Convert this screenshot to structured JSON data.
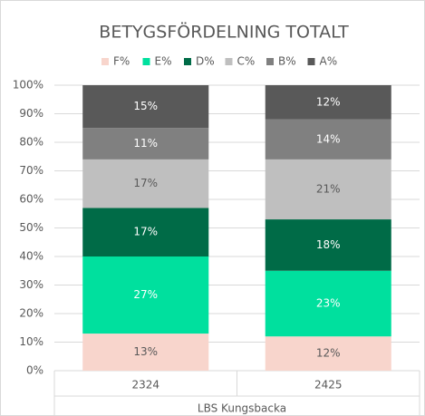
{
  "chart_data": {
    "type": "stacked_bar",
    "title": "BETYGSFÖRDELNING TOTALT",
    "categories": [
      "2324",
      "2425"
    ],
    "x_group_label": "LBS Kungsbacka",
    "series": [
      {
        "name": "F%",
        "color": "#f8d5cc",
        "values": [
          13,
          12
        ],
        "value_labels": [
          "13%",
          "12%"
        ]
      },
      {
        "name": "E%",
        "color": "#00e09e",
        "values": [
          27,
          23
        ],
        "value_labels": [
          "27%",
          "23%"
        ]
      },
      {
        "name": "D%",
        "color": "#006b47",
        "values": [
          17,
          18
        ],
        "value_labels": [
          "17%",
          "18%"
        ]
      },
      {
        "name": "C%",
        "color": "#bfbfbf",
        "values": [
          17,
          21
        ],
        "value_labels": [
          "17%",
          "21%"
        ]
      },
      {
        "name": "B%",
        "color": "#808080",
        "values": [
          11,
          14
        ],
        "value_labels": [
          "11%",
          "14%"
        ]
      },
      {
        "name": "A%",
        "color": "#595959",
        "values": [
          15,
          12
        ],
        "value_labels": [
          "15%",
          "12%"
        ]
      }
    ],
    "ylim": [
      0,
      100
    ],
    "yticks": [
      {
        "value": 0,
        "label": "0%"
      },
      {
        "value": 10,
        "label": "10%"
      },
      {
        "value": 20,
        "label": "20%"
      },
      {
        "value": 30,
        "label": "30%"
      },
      {
        "value": 40,
        "label": "40%"
      },
      {
        "value": 50,
        "label": "50%"
      },
      {
        "value": 60,
        "label": "60%"
      },
      {
        "value": 70,
        "label": "70%"
      },
      {
        "value": 80,
        "label": "80%"
      },
      {
        "value": 90,
        "label": "90%"
      },
      {
        "value": 100,
        "label": "100%"
      }
    ],
    "grid": true,
    "legend": "top"
  }
}
